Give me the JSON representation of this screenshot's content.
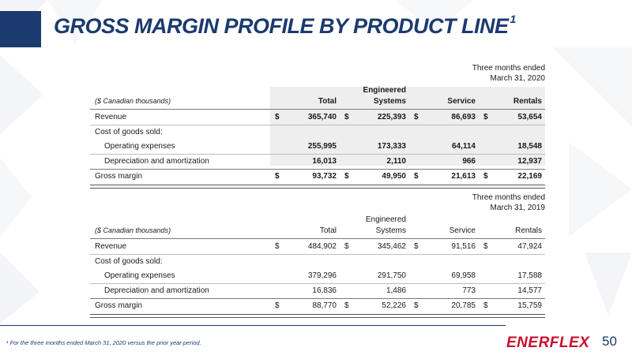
{
  "slide": {
    "title": "GROSS MARGIN PROFILE BY PRODUCT LINE",
    "title_sup": "1",
    "footnote": "¹ For the three months ended March 31, 2020 versus the prior year period.",
    "logo": "ENERFLEX",
    "page_number": "50",
    "colors": {
      "navy": "#1b3a6e",
      "red": "#c8102e",
      "shade": "#eeeeee"
    }
  },
  "tables": [
    {
      "period_line1": "Three months ended",
      "period_line2": "March 31, 2020",
      "units_label": "($ Canadian thousands)",
      "columns": [
        {
          "line1": "",
          "line2": "Total"
        },
        {
          "line1": "Engineered",
          "line2": "Systems"
        },
        {
          "line1": "",
          "line2": "Service"
        },
        {
          "line1": "",
          "line2": "Rentals"
        }
      ],
      "rows": [
        {
          "label": "Revenue",
          "values": [
            "365,740",
            "225,393",
            "86,693",
            "53,654"
          ]
        },
        {
          "label": "Cost of goods sold:",
          "values": [
            "",
            "",
            "",
            ""
          ]
        },
        {
          "label": "Operating expenses",
          "values": [
            "255,995",
            "173,333",
            "64,114",
            "18,548"
          ]
        },
        {
          "label": "Depreciation and amortization",
          "values": [
            "16,013",
            "2,110",
            "966",
            "12,937"
          ]
        },
        {
          "label": "Gross margin",
          "values": [
            "93,732",
            "49,950",
            "21,613",
            "22,169"
          ]
        }
      ],
      "currency": "$"
    },
    {
      "period_line1": "Three months ended",
      "period_line2": "March 31, 2019",
      "units_label": "($ Canadian thousands)",
      "columns": [
        {
          "line1": "",
          "line2": "Total"
        },
        {
          "line1": "Engineered",
          "line2": "Systems"
        },
        {
          "line1": "",
          "line2": "Service"
        },
        {
          "line1": "",
          "line2": "Rentals"
        }
      ],
      "rows": [
        {
          "label": "Revenue",
          "values": [
            "484,902",
            "345,462",
            "91,516",
            "47,924"
          ]
        },
        {
          "label": "Cost of goods sold:",
          "values": [
            "",
            "",
            "",
            ""
          ]
        },
        {
          "label": "Operating expenses",
          "values": [
            "379,296",
            "291,750",
            "69,958",
            "17,588"
          ]
        },
        {
          "label": "Depreciation and amortization",
          "values": [
            "16,836",
            "1,486",
            "773",
            "14,577"
          ]
        },
        {
          "label": "Gross margin",
          "values": [
            "88,770",
            "52,226",
            "20,785",
            "15,759"
          ]
        }
      ],
      "currency": "$"
    }
  ]
}
